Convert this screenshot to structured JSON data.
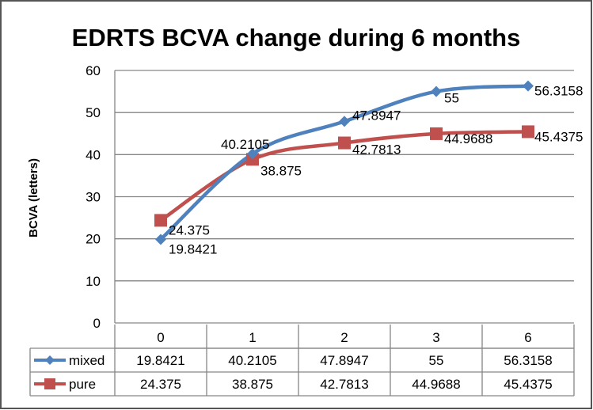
{
  "chart_data": {
    "type": "line",
    "title": "EDRTS BCVA change during 6 months",
    "xlabel": "",
    "ylabel": "BCVA (letters)",
    "categories": [
      "0",
      "1",
      "2",
      "3",
      "6"
    ],
    "ylim": [
      0,
      60
    ],
    "yticks": [
      "0",
      "10",
      "20",
      "30",
      "40",
      "50",
      "60"
    ],
    "grid": true,
    "legend": "data-table",
    "series": [
      {
        "name": "mixed",
        "color": "#4F81BD",
        "marker": "diamond",
        "values": [
          19.8421,
          40.2105,
          47.8947,
          55,
          56.3158
        ],
        "labels": [
          "19.8421",
          "40.2105",
          "47.8947",
          "55",
          "56.3158"
        ]
      },
      {
        "name": "pure",
        "color": "#C0504D",
        "marker": "square",
        "values": [
          24.375,
          38.875,
          42.7813,
          44.9688,
          45.4375
        ],
        "labels": [
          "24.375",
          "38.875",
          "42.7813",
          "44.9688",
          "45.4375"
        ]
      }
    ]
  }
}
